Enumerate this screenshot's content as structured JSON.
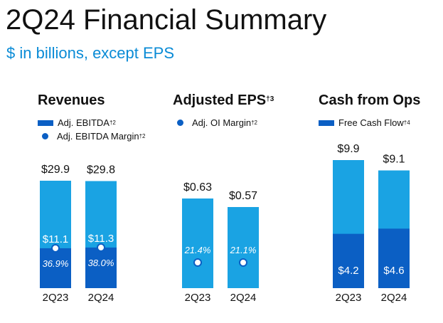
{
  "title": "2Q24 Financial Summary",
  "subtitle": "$ in billions, except EPS",
  "colors": {
    "bar_total": "#1aa3e3",
    "bar_segment": "#0b5fc4",
    "accent": "#0a8bd6"
  },
  "panels": {
    "revenues": {
      "title": "Revenues",
      "legend": [
        {
          "label": "Adj. EBITDA",
          "note": "†2",
          "marker": "bar"
        },
        {
          "label": "Adj. EBITDA Margin",
          "note": "†2",
          "marker": "dot"
        }
      ]
    },
    "eps": {
      "title": "Adjusted EPS",
      "title_note": "†3",
      "legend": [
        {
          "label": "Adj. OI Margin",
          "note": "†2",
          "marker": "dot"
        }
      ]
    },
    "cash": {
      "title": "Cash from Ops",
      "legend": [
        {
          "label": "Free Cash Flow",
          "note": "†4",
          "marker": "bar"
        }
      ]
    }
  },
  "chart_data": [
    {
      "type": "bar",
      "title": "Revenues",
      "categories": [
        "2Q23",
        "2Q24"
      ],
      "series": [
        {
          "values": [
            29.9,
            29.8
          ],
          "labels": [
            "$29.9",
            "$29.8"
          ]
        },
        {
          "name": "Adj. EBITDA",
          "values": [
            11.1,
            11.3
          ],
          "labels": [
            "$11.1",
            "$11.3"
          ]
        },
        {
          "name": "Adj. EBITDA Margin",
          "values": [
            36.9,
            38.0
          ],
          "labels": [
            "36.9%",
            "38.0%"
          ]
        }
      ]
    },
    {
      "type": "bar",
      "title": "Adjusted EPS",
      "categories": [
        "2Q23",
        "2Q24"
      ],
      "series": [
        {
          "values": [
            0.63,
            0.57
          ],
          "labels": [
            "$0.63",
            "$0.57"
          ]
        },
        {
          "name": "Adj. OI Margin",
          "values": [
            21.4,
            21.1
          ],
          "labels": [
            "21.4%",
            "21.1%"
          ]
        }
      ]
    },
    {
      "type": "bar",
      "title": "Cash from Ops",
      "categories": [
        "2Q23",
        "2Q24"
      ],
      "series": [
        {
          "values": [
            9.9,
            9.1
          ],
          "labels": [
            "$9.9",
            "$9.1"
          ]
        },
        {
          "name": "Free Cash Flow",
          "values": [
            4.2,
            4.6
          ],
          "labels": [
            "$4.2",
            "$4.6"
          ]
        }
      ]
    }
  ]
}
